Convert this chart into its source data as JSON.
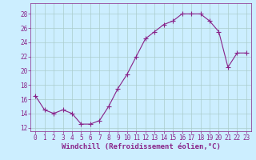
{
  "x": [
    0,
    1,
    2,
    3,
    4,
    5,
    6,
    7,
    8,
    9,
    10,
    11,
    12,
    13,
    14,
    15,
    16,
    17,
    18,
    19,
    20,
    21,
    22,
    23
  ],
  "y": [
    16.5,
    14.5,
    14.0,
    14.5,
    14.0,
    12.5,
    12.5,
    13.0,
    15.0,
    17.5,
    19.5,
    22.0,
    24.5,
    25.5,
    26.5,
    27.0,
    28.0,
    28.0,
    28.0,
    27.0,
    25.5,
    20.5,
    22.5,
    22.5
  ],
  "line_color": "#882288",
  "marker": "+",
  "marker_size": 4,
  "bg_color": "#cceeff",
  "grid_color": "#aacccc",
  "xlabel": "Windchill (Refroidissement éolien,°C)",
  "ylabel": "",
  "xlim": [
    -0.5,
    23.5
  ],
  "ylim": [
    11.5,
    29.5
  ],
  "yticks": [
    12,
    14,
    16,
    18,
    20,
    22,
    24,
    26,
    28
  ],
  "xticks": [
    0,
    1,
    2,
    3,
    4,
    5,
    6,
    7,
    8,
    9,
    10,
    11,
    12,
    13,
    14,
    15,
    16,
    17,
    18,
    19,
    20,
    21,
    22,
    23
  ],
  "tick_color": "#882288",
  "tick_labelsize": 5.5,
  "xlabel_fontsize": 6.5,
  "xlabel_color": "#882288",
  "linewidth": 0.8
}
